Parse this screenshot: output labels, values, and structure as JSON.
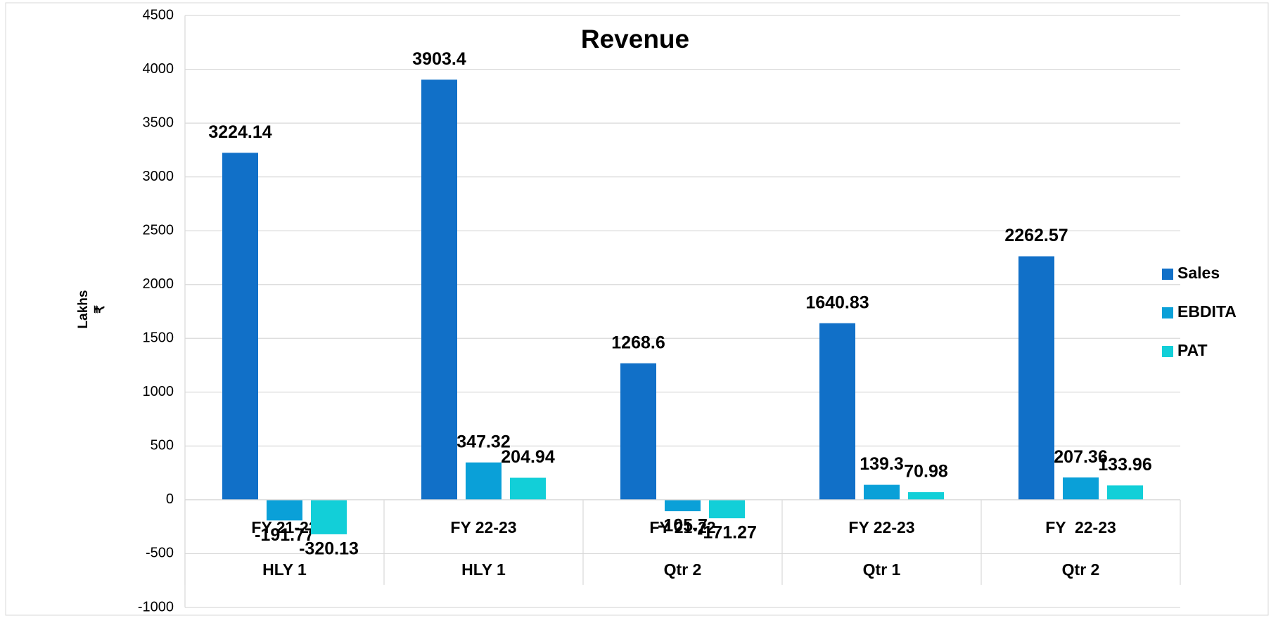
{
  "chart_data": {
    "type": "bar",
    "title": "Revenue",
    "ylabel": "Lakhs",
    "ylabel_unit": "₹",
    "categories": [
      "FY 21-22",
      "FY 22-23",
      "FY 21-22",
      "FY 22-23",
      "FY  22-23"
    ],
    "category_groups": [
      "HLY 1",
      "HLY 1",
      "Qtr 2",
      "Qtr 1",
      "Qtr 2"
    ],
    "series": [
      {
        "name": "Sales",
        "color": "#1170c8",
        "values": [
          3224.14,
          3903.4,
          1268.6,
          1640.83,
          2262.57
        ]
      },
      {
        "name": "EBDITA",
        "color": "#0aa0d8",
        "values": [
          -191.77,
          347.32,
          -105.7,
          139.3,
          207.36
        ]
      },
      {
        "name": "PAT",
        "color": "#12cfd8",
        "values": [
          -320.13,
          204.94,
          -171.27,
          70.98,
          133.96
        ]
      }
    ],
    "ylim": [
      -1000,
      4500
    ],
    "yticks": [
      -1000,
      -500,
      0,
      500,
      1000,
      1500,
      2000,
      2500,
      3000,
      3500,
      4000,
      4500
    ],
    "grid": true,
    "legend": "right"
  }
}
